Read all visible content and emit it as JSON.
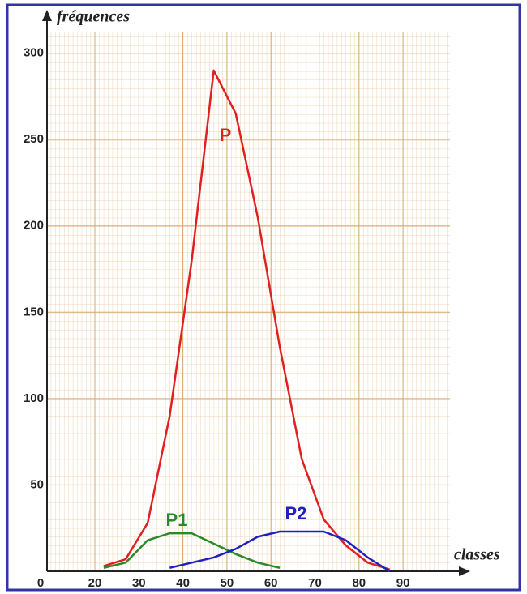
{
  "chart_data": {
    "type": "line",
    "x_label": "classes",
    "y_label": "fréquences",
    "x": [
      22,
      27,
      32,
      37,
      42,
      47,
      52,
      57,
      62,
      67,
      72,
      77,
      82,
      87
    ],
    "series": [
      {
        "name": "P",
        "color": "#e02020",
        "values": [
          3,
          7,
          28,
          90,
          180,
          290,
          265,
          205,
          130,
          65,
          30,
          15,
          5,
          1
        ]
      },
      {
        "name": "P1",
        "color": "#2a8a2a",
        "values": [
          2,
          5,
          18,
          22,
          22,
          16,
          10,
          5,
          2,
          null,
          null,
          null,
          null,
          null
        ]
      },
      {
        "name": "P2",
        "color": "#2020c0",
        "values": [
          null,
          null,
          null,
          2,
          5,
          8,
          13,
          20,
          23,
          23,
          23,
          18,
          8,
          0
        ]
      }
    ],
    "xlim": [
      0,
      100
    ],
    "ylim": [
      0,
      312
    ],
    "xticks": [
      0,
      20,
      30,
      40,
      50,
      60,
      70,
      80,
      90
    ],
    "yticks": [
      50,
      100,
      150,
      200,
      250,
      300
    ],
    "grid": true
  }
}
